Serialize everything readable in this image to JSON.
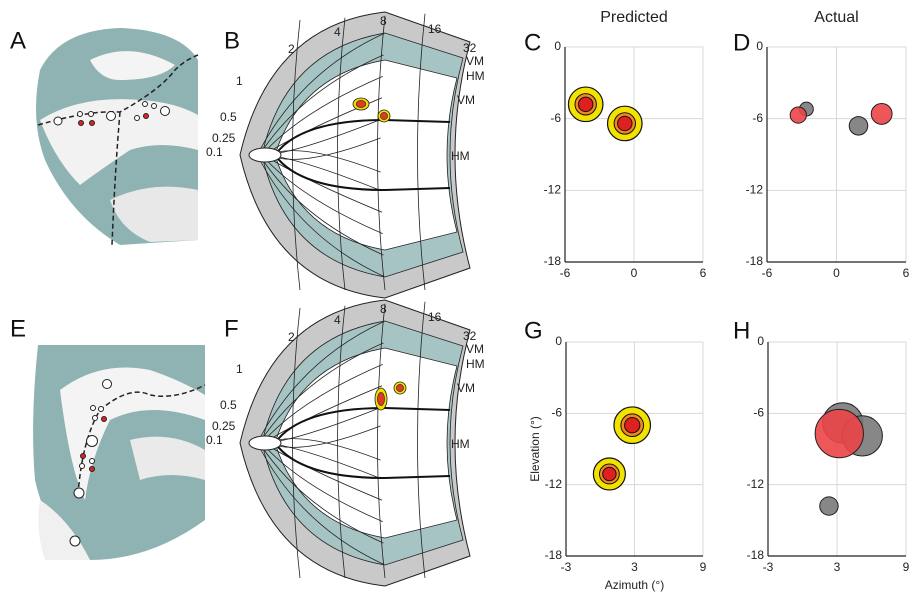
{
  "panel_labels": [
    "A",
    "B",
    "C",
    "D",
    "E",
    "F",
    "G",
    "H"
  ],
  "maps": [
    {
      "ecc_labels": [
        "1",
        "2",
        "4",
        "8",
        "16",
        "32",
        "0.5",
        "0.25",
        "0.1"
      ],
      "meridian_labels": [
        "VM",
        "HM",
        "VM",
        "HM"
      ]
    },
    {
      "ecc_labels": [
        "1",
        "2",
        "4",
        "8",
        "16",
        "32",
        "0.5",
        "0.25",
        "0.1"
      ],
      "meridian_labels": [
        "VM",
        "HM",
        "VM",
        "HM"
      ]
    }
  ],
  "chart_data": [
    {
      "type": "scatter",
      "style": "predicted",
      "title": "Predicted",
      "xlim": [
        -6,
        6
      ],
      "ylim": [
        -18,
        0
      ],
      "xticks": [
        -6,
        0,
        6
      ],
      "yticks": [
        0,
        -6,
        -12,
        -18
      ],
      "grid": true,
      "series": [
        {
          "color": "#e02020",
          "x": [
            -4.2,
            -0.8
          ],
          "y": [
            -4.8,
            -6.4
          ],
          "sizes": [
            1.5,
            1.5
          ]
        }
      ]
    },
    {
      "type": "scatter",
      "style": "actual",
      "title": "Actual",
      "xlim": [
        -6,
        6
      ],
      "ylim": [
        -18,
        0
      ],
      "xticks": [
        -6,
        0,
        6
      ],
      "yticks": [
        0,
        -6,
        -12,
        -18
      ],
      "grid": true,
      "series": [
        {
          "color": "#7a7a7a",
          "x": [
            -2.6,
            1.9
          ],
          "y": [
            -5.2,
            -6.6
          ],
          "sizes": [
            0.6,
            0.8
          ]
        },
        {
          "color": "#ec4548",
          "x": [
            -3.3,
            3.9
          ],
          "y": [
            -5.7,
            -5.6
          ],
          "sizes": [
            0.7,
            0.9
          ]
        }
      ]
    },
    {
      "type": "scatter",
      "style": "predicted",
      "xlabel": "Azimuth (°)",
      "ylabel": "Elevation (°)",
      "xlim": [
        -3,
        9
      ],
      "ylim": [
        -18,
        0
      ],
      "xticks": [
        -3,
        3,
        9
      ],
      "yticks": [
        0,
        -6,
        -12,
        -18
      ],
      "grid": true,
      "series": [
        {
          "color": "#e02020",
          "x": [
            2.8,
            0.8
          ],
          "y": [
            -7.0,
            -11.1
          ],
          "sizes": [
            1.6,
            1.4
          ]
        }
      ]
    },
    {
      "type": "scatter",
      "style": "actual",
      "xlim": [
        -3,
        9
      ],
      "ylim": [
        -18,
        0
      ],
      "xticks": [
        -3,
        3,
        9
      ],
      "yticks": [
        0,
        -6,
        -12,
        -18
      ],
      "grid": true,
      "series": [
        {
          "color": "#7a7a7a",
          "x": [
            3.5,
            5.2,
            2.3
          ],
          "y": [
            -6.8,
            -7.9,
            -13.8
          ],
          "sizes": [
            1.75,
            1.75,
            0.8
          ]
        },
        {
          "color": "#ec4548",
          "x": [
            3.2
          ],
          "y": [
            -7.7
          ],
          "sizes": [
            2.1
          ]
        }
      ]
    }
  ]
}
